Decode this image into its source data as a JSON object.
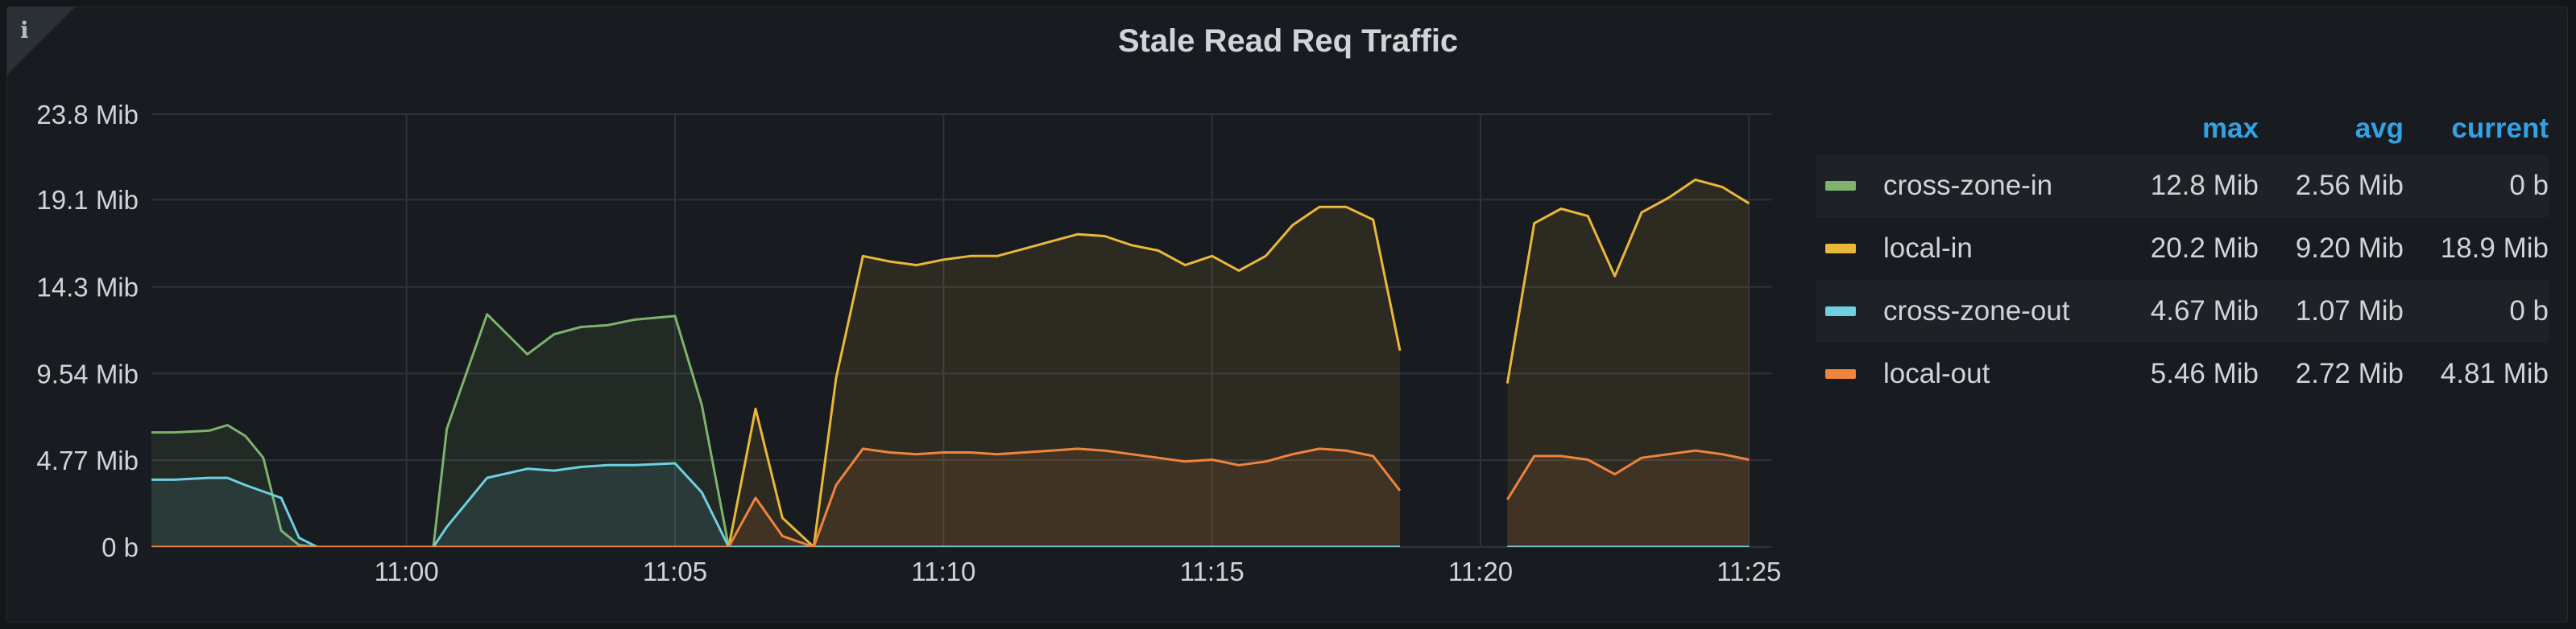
{
  "panel": {
    "title": "Stale Read Req Traffic",
    "info_icon": "i"
  },
  "legend": {
    "headers": {
      "max": "max",
      "avg": "avg",
      "current": "current"
    },
    "rows": [
      {
        "name": "cross-zone-in",
        "color": "#7eb26d",
        "max": "12.8 Mib",
        "avg": "2.56 Mib",
        "current": "0 b"
      },
      {
        "name": "local-in",
        "color": "#eab839",
        "max": "20.2 Mib",
        "avg": "9.20 Mib",
        "current": "18.9 Mib"
      },
      {
        "name": "cross-zone-out",
        "color": "#6ed0e0",
        "max": "4.67 Mib",
        "avg": "1.07 Mib",
        "current": "0 b"
      },
      {
        "name": "local-out",
        "color": "#ef843c",
        "max": "5.46 Mib",
        "avg": "2.72 Mib",
        "current": "4.81 Mib"
      }
    ]
  },
  "chart_data": {
    "type": "area",
    "title": "Stale Read Req Traffic",
    "xlabel": "",
    "ylabel": "",
    "y_unit": "Mib",
    "ylim": [
      0,
      23.8
    ],
    "y_ticks": [
      0,
      4.77,
      9.54,
      14.3,
      19.1,
      23.8
    ],
    "y_tick_labels": [
      "0 b",
      "4.77 Mib",
      "9.54 Mib",
      "14.3 Mib",
      "19.1 Mib",
      "23.8 Mib"
    ],
    "x_range_minutes": [
      "10:55:15",
      "11:25:15"
    ],
    "x_ticks": [
      "11:00",
      "11:05",
      "11:10",
      "11:15",
      "11:20",
      "11:25"
    ],
    "grid": true,
    "legend_position": "right",
    "series": [
      {
        "name": "cross-zone-in",
        "color": "#7eb26d",
        "points": [
          [
            "10:55:00",
            6.3
          ],
          [
            "10:55:40",
            6.3
          ],
          [
            "10:56:20",
            6.4
          ],
          [
            "10:56:40",
            6.7
          ],
          [
            "10:57:00",
            6.1
          ],
          [
            "10:57:20",
            4.9
          ],
          [
            "10:57:40",
            0.9
          ],
          [
            "10:58:00",
            0.1
          ],
          [
            "10:58:20",
            0
          ],
          [
            "11:00:30",
            0
          ],
          [
            "11:00:45",
            6.5
          ],
          [
            "11:01:30",
            12.8
          ],
          [
            "11:02:15",
            10.6
          ],
          [
            "11:02:45",
            11.7
          ],
          [
            "11:03:15",
            12.1
          ],
          [
            "11:03:45",
            12.2
          ],
          [
            "11:04:15",
            12.5
          ],
          [
            "11:05:00",
            12.7
          ],
          [
            "11:05:30",
            7.8
          ],
          [
            "11:06:00",
            0
          ],
          [
            "11:18:30",
            0
          ],
          null,
          [
            "11:20:30",
            0
          ],
          [
            "11:25:00",
            0
          ]
        ]
      },
      {
        "name": "local-in",
        "color": "#eab839",
        "points": [
          [
            "10:55:00",
            0
          ],
          [
            "11:06:00",
            0
          ],
          [
            "11:06:30",
            7.6
          ],
          [
            "11:07:00",
            1.6
          ],
          [
            "11:07:35",
            0
          ],
          [
            "11:08:00",
            9.3
          ],
          [
            "11:08:30",
            16.0
          ],
          [
            "11:09:00",
            15.7
          ],
          [
            "11:09:30",
            15.5
          ],
          [
            "11:10:00",
            15.8
          ],
          [
            "11:10:30",
            16.0
          ],
          [
            "11:11:00",
            16.0
          ],
          [
            "11:11:30",
            16.4
          ],
          [
            "11:12:00",
            16.8
          ],
          [
            "11:12:30",
            17.2
          ],
          [
            "11:13:00",
            17.1
          ],
          [
            "11:13:30",
            16.6
          ],
          [
            "11:14:00",
            16.3
          ],
          [
            "11:14:30",
            15.5
          ],
          [
            "11:15:00",
            16.0
          ],
          [
            "11:15:30",
            15.2
          ],
          [
            "11:16:00",
            16.0
          ],
          [
            "11:16:30",
            17.7
          ],
          [
            "11:17:00",
            18.7
          ],
          [
            "11:17:30",
            18.7
          ],
          [
            "11:18:00",
            18.0
          ],
          [
            "11:18:30",
            10.8
          ],
          null,
          [
            "11:20:30",
            9.0
          ],
          [
            "11:21:00",
            17.8
          ],
          [
            "11:21:30",
            18.6
          ],
          [
            "11:22:00",
            18.2
          ],
          [
            "11:22:30",
            14.9
          ],
          [
            "11:23:00",
            18.4
          ],
          [
            "11:23:30",
            19.2
          ],
          [
            "11:24:00",
            20.2
          ],
          [
            "11:24:30",
            19.8
          ],
          [
            "11:25:00",
            18.9
          ]
        ]
      },
      {
        "name": "cross-zone-out",
        "color": "#6ed0e0",
        "points": [
          [
            "10:55:00",
            3.7
          ],
          [
            "10:55:40",
            3.7
          ],
          [
            "10:56:20",
            3.8
          ],
          [
            "10:56:40",
            3.8
          ],
          [
            "10:57:00",
            3.4
          ],
          [
            "10:57:40",
            2.7
          ],
          [
            "10:58:00",
            0.5
          ],
          [
            "10:58:20",
            0
          ],
          [
            "11:00:30",
            0
          ],
          [
            "11:00:45",
            1.1
          ],
          [
            "11:01:30",
            3.8
          ],
          [
            "11:02:15",
            4.3
          ],
          [
            "11:02:45",
            4.2
          ],
          [
            "11:03:15",
            4.4
          ],
          [
            "11:03:45",
            4.5
          ],
          [
            "11:04:15",
            4.5
          ],
          [
            "11:05:00",
            4.6
          ],
          [
            "11:05:30",
            3.0
          ],
          [
            "11:06:00",
            0
          ],
          [
            "11:18:30",
            0
          ],
          null,
          [
            "11:20:30",
            0
          ],
          [
            "11:25:00",
            0
          ]
        ]
      },
      {
        "name": "local-out",
        "color": "#ef843c",
        "points": [
          [
            "10:55:00",
            0
          ],
          [
            "11:06:00",
            0
          ],
          [
            "11:06:30",
            2.7
          ],
          [
            "11:07:00",
            0.6
          ],
          [
            "11:07:35",
            0
          ],
          [
            "11:08:00",
            3.4
          ],
          [
            "11:08:30",
            5.4
          ],
          [
            "11:09:00",
            5.2
          ],
          [
            "11:09:30",
            5.1
          ],
          [
            "11:10:00",
            5.2
          ],
          [
            "11:10:30",
            5.2
          ],
          [
            "11:11:00",
            5.1
          ],
          [
            "11:11:30",
            5.2
          ],
          [
            "11:12:00",
            5.3
          ],
          [
            "11:12:30",
            5.4
          ],
          [
            "11:13:00",
            5.3
          ],
          [
            "11:13:30",
            5.1
          ],
          [
            "11:14:00",
            4.9
          ],
          [
            "11:14:30",
            4.7
          ],
          [
            "11:15:00",
            4.8
          ],
          [
            "11:15:30",
            4.5
          ],
          [
            "11:16:00",
            4.7
          ],
          [
            "11:16:30",
            5.1
          ],
          [
            "11:17:00",
            5.4
          ],
          [
            "11:17:30",
            5.3
          ],
          [
            "11:18:00",
            5.0
          ],
          [
            "11:18:30",
            3.1
          ],
          null,
          [
            "11:20:30",
            2.6
          ],
          [
            "11:21:00",
            5.0
          ],
          [
            "11:21:30",
            5.0
          ],
          [
            "11:22:00",
            4.8
          ],
          [
            "11:22:30",
            4.0
          ],
          [
            "11:23:00",
            4.9
          ],
          [
            "11:23:30",
            5.1
          ],
          [
            "11:24:00",
            5.3
          ],
          [
            "11:24:30",
            5.1
          ],
          [
            "11:25:00",
            4.8
          ]
        ]
      }
    ]
  }
}
